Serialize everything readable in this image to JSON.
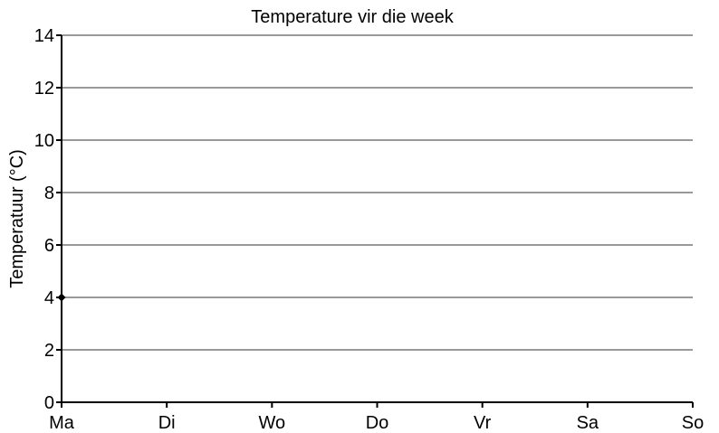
{
  "chart_data": {
    "type": "line",
    "title": "Temperature vir die week",
    "xlabel": "",
    "ylabel": "Temperatuur (°C)",
    "categories": [
      "Ma",
      "Di",
      "Wo",
      "Do",
      "Vr",
      "Sa",
      "So"
    ],
    "ylim": [
      0,
      14
    ],
    "yticks": [
      0,
      2,
      4,
      6,
      8,
      10,
      12,
      14
    ],
    "grid": true,
    "series": [
      {
        "points": [
          {
            "x": "Ma",
            "y": 4
          }
        ]
      }
    ]
  }
}
